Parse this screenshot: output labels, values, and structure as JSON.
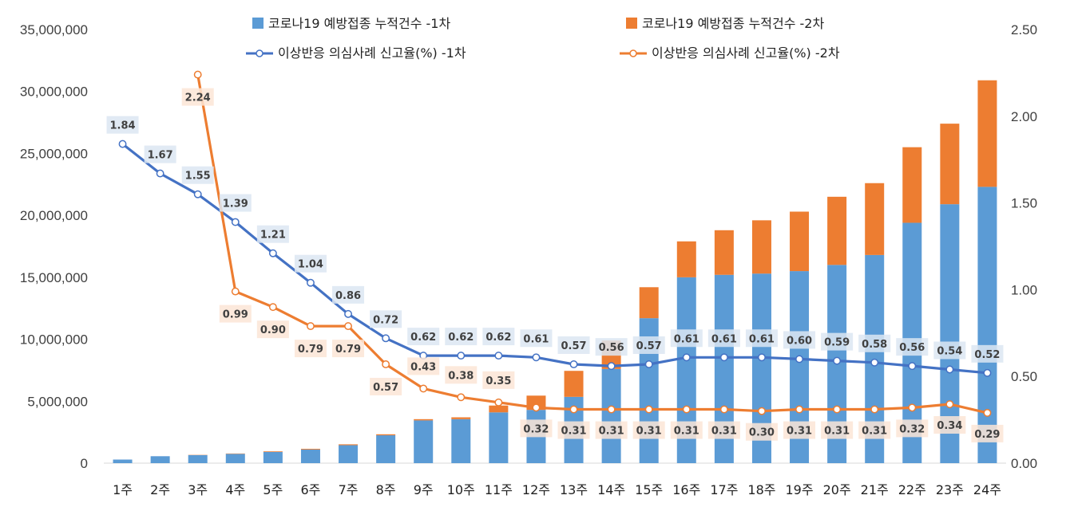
{
  "chart_data": {
    "type": "bar",
    "stacked": true,
    "categories": [
      "1주",
      "2주",
      "3주",
      "4주",
      "5주",
      "6주",
      "7주",
      "8주",
      "9주",
      "10주",
      "11주",
      "12주",
      "13주",
      "14주",
      "15주",
      "16주",
      "17주",
      "18주",
      "19주",
      "20주",
      "21주",
      "22주",
      "23주",
      "24주"
    ],
    "series": [
      {
        "name": "코로나19 예방접종 누적건수 -1차",
        "type": "bar",
        "axis": "left",
        "color": "#5B9BD5",
        "values": [
          290000,
          560000,
          650000,
          750000,
          900000,
          1100000,
          1450000,
          2250000,
          3450000,
          3550000,
          4100000,
          4300000,
          5350000,
          7600000,
          11700000,
          15000000,
          15200000,
          15300000,
          15500000,
          16000000,
          16800000,
          19400000,
          20900000,
          22300000
        ]
      },
      {
        "name": "코로나19 예방접종 누적건수 -2차",
        "type": "bar",
        "axis": "left",
        "color": "#ED7D31",
        "values": [
          0,
          0,
          20000,
          30000,
          50000,
          60000,
          70000,
          80000,
          100000,
          150000,
          550000,
          1150000,
          2100000,
          2300000,
          2500000,
          2900000,
          3600000,
          4300000,
          4800000,
          5500000,
          5800000,
          6100000,
          6500000,
          8600000
        ]
      },
      {
        "name": "이상반응 의심사례 신고율(%) -1차",
        "type": "line",
        "axis": "right",
        "color": "#4472C4",
        "values": [
          1.84,
          1.67,
          1.55,
          1.39,
          1.21,
          1.04,
          0.86,
          0.72,
          0.62,
          0.62,
          0.62,
          0.61,
          0.57,
          0.56,
          0.57,
          0.61,
          0.61,
          0.61,
          0.6,
          0.59,
          0.58,
          0.56,
          0.54,
          0.52
        ],
        "labels": [
          "1.84",
          "1.67",
          "1.55",
          "1.39",
          "1.21",
          "1.04",
          "0.86",
          "0.72",
          "0.62",
          "0.62",
          "0.62",
          "0.61",
          "0.57",
          "0.56",
          "0.57",
          "0.61",
          "0.61",
          "0.61",
          "0.60",
          "0.59",
          "0.58",
          "0.56",
          "0.54",
          "0.52"
        ]
      },
      {
        "name": "이상반응 의심사례 신고율(%) -2차",
        "type": "line",
        "axis": "right",
        "color": "#ED7D31",
        "start_index": 2,
        "values": [
          null,
          null,
          2.24,
          0.99,
          0.9,
          0.79,
          0.79,
          0.57,
          0.43,
          0.38,
          0.35,
          0.32,
          0.31,
          0.31,
          0.31,
          0.31,
          0.31,
          0.3,
          0.31,
          0.31,
          0.31,
          0.32,
          0.34,
          0.29
        ],
        "labels": [
          null,
          null,
          "2.24",
          "0.99",
          "0.90",
          "0.79",
          "0.79",
          "0.57",
          "0.43",
          "0.38",
          "0.35",
          "0.32",
          "0.31",
          "0.31",
          "0.31",
          "0.31",
          "0.31",
          "0.30",
          "0.31",
          "0.31",
          "0.31",
          "0.32",
          "0.34",
          "0.29"
        ]
      }
    ],
    "y_left": {
      "ylim": [
        0,
        35000000
      ],
      "ticks": [
        "0",
        "5,000,000",
        "10,000,000",
        "15,000,000",
        "20,000,000",
        "25,000,000",
        "30,000,000",
        "35,000,000"
      ]
    },
    "y_right": {
      "ylim": [
        0,
        2.5
      ],
      "ticks": [
        "0.00",
        "0.50",
        "1.00",
        "1.50",
        "2.00",
        "2.50"
      ]
    },
    "legend_position": "top",
    "grid": false,
    "title": "",
    "xlabel": "",
    "ylabel": ""
  }
}
